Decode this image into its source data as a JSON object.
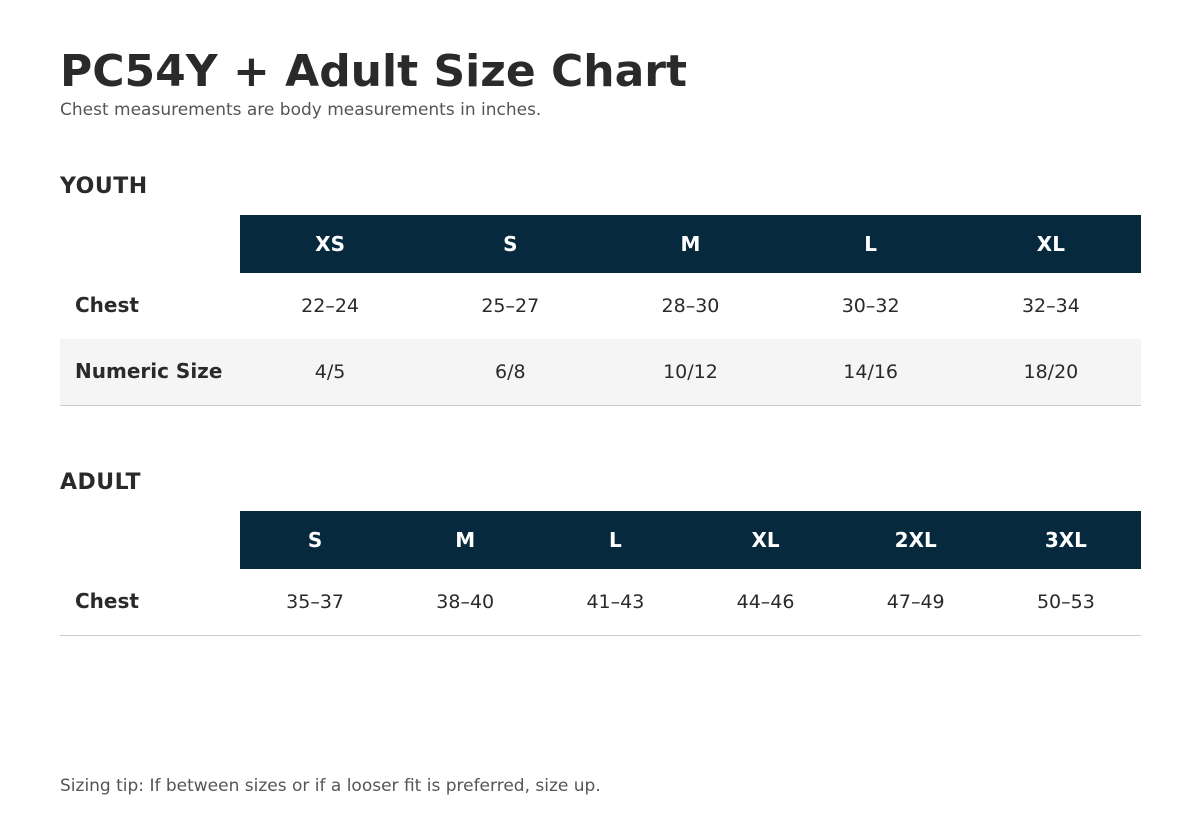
{
  "page": {
    "title": "PC54Y + Adult Size Chart",
    "subtitle": "Chest measurements are body measurements in inches.",
    "tip": "Sizing tip: If between sizes or if a looser fit is preferred, size up."
  },
  "colors": {
    "header_bg": "#06293d",
    "header_text": "#ffffff",
    "shaded_row": "#f5f5f5",
    "title_text": "#2a2a2a",
    "muted_text": "#555555"
  },
  "youth": {
    "heading": "YOUTH",
    "sizes": [
      "XS",
      "S",
      "M",
      "L",
      "XL"
    ],
    "rows": [
      {
        "label": "Chest",
        "values": [
          "22–24",
          "25–27",
          "28–30",
          "30–32",
          "32–34"
        ]
      },
      {
        "label": "Numeric Size",
        "values": [
          "4/5",
          "6/8",
          "10/12",
          "14/16",
          "18/20"
        ]
      }
    ]
  },
  "adult": {
    "heading": "ADULT",
    "sizes": [
      "S",
      "M",
      "L",
      "XL",
      "2XL",
      "3XL"
    ],
    "rows": [
      {
        "label": "Chest",
        "values": [
          "35–37",
          "38–40",
          "41–43",
          "44–46",
          "47–49",
          "50–53"
        ]
      }
    ]
  }
}
